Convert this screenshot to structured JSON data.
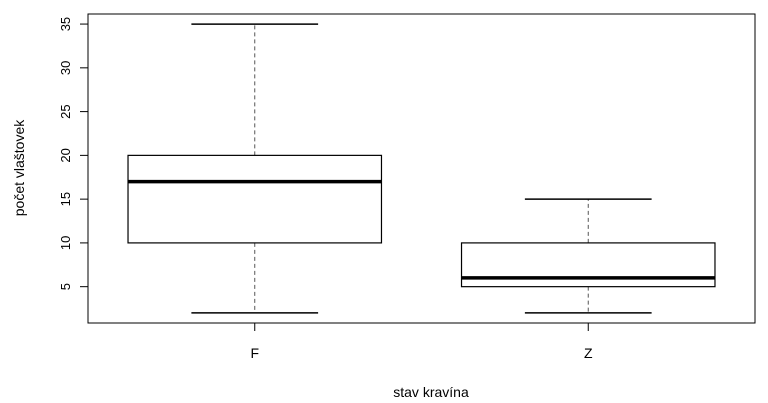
{
  "chart_data": {
    "type": "boxplot",
    "title": "",
    "xlabel": "stav kravína",
    "ylabel": "počet vlaštovek",
    "categories": [
      "F",
      "Z"
    ],
    "boxes": [
      {
        "category": "F",
        "min": 2,
        "q1": 10,
        "median": 17,
        "q3": 20,
        "max": 35
      },
      {
        "category": "Z",
        "min": 2,
        "q1": 5,
        "median": 6,
        "q3": 10,
        "max": 15
      }
    ],
    "y_ticks": [
      5,
      10,
      15,
      20,
      25,
      30,
      35
    ],
    "ylim": [
      0.85,
      36.15
    ],
    "grid": false
  }
}
